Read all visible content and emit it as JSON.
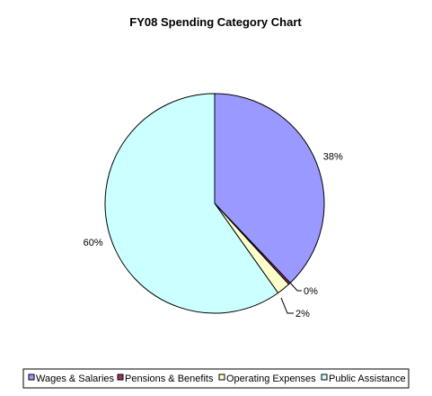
{
  "chart_data": {
    "type": "pie",
    "title": "FY08 Spending Category Chart",
    "slices": [
      {
        "name": "Wages & Salaries",
        "value": 38,
        "label": "38%",
        "color": "#9999ff"
      },
      {
        "name": "Pensions & Benefits",
        "value": 0.3,
        "label": "0%",
        "color": "#993366"
      },
      {
        "name": "Operating Expenses",
        "value": 2,
        "label": "2%",
        "color": "#ffffcc"
      },
      {
        "name": "Public Assistance",
        "value": 60,
        "label": "60%",
        "color": "#ccffff"
      }
    ],
    "start_angle": "12 o'clock",
    "direction": "clockwise",
    "legend_position": "bottom",
    "slice_border_color": "#000000"
  }
}
